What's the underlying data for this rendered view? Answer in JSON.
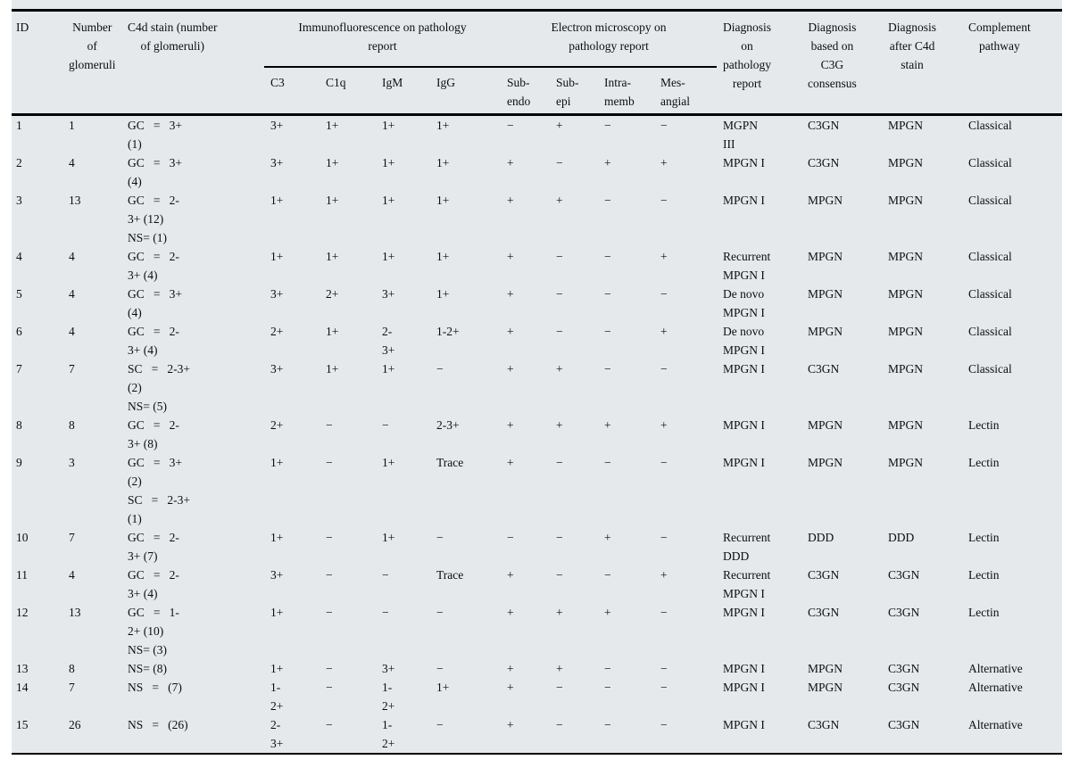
{
  "table": {
    "header": {
      "id": "ID",
      "glomeruli": "Number\nof\nglomeruli",
      "c4d": "C4d stain (number\nof glomeruli)",
      "if_group": "Immunofluorescence on pathology\nreport",
      "em_group": "Electron microscopy on\npathology report",
      "c3": "C3",
      "c1q": "C1q",
      "igm": "IgM",
      "igg": "IgG",
      "subendo": "Sub-\nendo",
      "subepi": "Sub-\nepi",
      "intramemb": "Intra-\nmemb",
      "mesangial": "Mes-\nangial",
      "diag_path": "Diagnosis\non\npathology\nreport",
      "diag_c3g": "Diagnosis\nbased on\nC3G\nconsensus",
      "diag_c4d": "Diagnosis\nafter C4d\nstain",
      "pathway": "Complement\npathway"
    },
    "rows": [
      [
        "1",
        "1",
        "GC   =   3+\n(1)",
        "3+",
        "1+",
        "1+",
        "1+",
        "−",
        "+",
        "−",
        "−",
        "MGPN\nIII",
        "C3GN",
        "MPGN",
        "Classical"
      ],
      [
        "2",
        "4",
        "GC   =   3+\n(4)",
        "3+",
        "1+",
        "1+",
        "1+",
        "+",
        "−",
        "+",
        "+",
        "MPGN I",
        "C3GN",
        "MPGN",
        "Classical"
      ],
      [
        "3",
        "13",
        "GC   =   2-\n3+ (12)\nNS= (1)",
        "1+",
        "1+",
        "1+",
        "1+",
        "+",
        "+",
        "−",
        "−",
        "MPGN I",
        "MPGN",
        "MPGN",
        "Classical"
      ],
      [
        "4",
        "4",
        "GC   =   2-\n3+ (4)",
        "1+",
        "1+",
        "1+",
        "1+",
        "+",
        "−",
        "−",
        "+",
        "Recurrent\nMPGN I",
        "MPGN",
        "MPGN",
        "Classical"
      ],
      [
        "5",
        "4",
        "GC   =   3+\n(4)",
        "3+",
        "2+",
        "3+",
        "1+",
        "+",
        "−",
        "−",
        "−",
        "De novo\nMPGN I",
        "MPGN",
        "MPGN",
        "Classical"
      ],
      [
        "6",
        "4",
        "GC   =   2-\n3+ (4)",
        "2+",
        "1+",
        "2-\n3+",
        "1-2+",
        "+",
        "−",
        "−",
        "+",
        "De novo\nMPGN I",
        "MPGN",
        "MPGN",
        "Classical"
      ],
      [
        "7",
        "7",
        "SC   =   2-3+\n(2)\nNS= (5)",
        "3+",
        "1+",
        "1+",
        "−",
        "+",
        "+",
        "−",
        "−",
        "MPGN I",
        "C3GN",
        "MPGN",
        "Classical"
      ],
      [
        "8",
        "8",
        "GC   =   2-\n3+ (8)",
        "2+",
        "−",
        "−",
        "2-3+",
        "+",
        "+",
        "+",
        "+",
        "MPGN I",
        "MPGN",
        "MPGN",
        "Lectin"
      ],
      [
        "9",
        "3",
        "GC   =   3+\n(2)\nSC   =   2-3+\n(1)",
        "1+",
        "−",
        "1+",
        "Trace",
        "+",
        "−",
        "−",
        "−",
        "MPGN I",
        "MPGN",
        "MPGN",
        "Lectin"
      ],
      [
        "10",
        "7",
        "GC   =   2-\n3+ (7)",
        "1+",
        "−",
        "1+",
        "−",
        "−",
        "−",
        "+",
        "−",
        "Recurrent\nDDD",
        "DDD",
        "DDD",
        "Lectin"
      ],
      [
        "11",
        "4",
        "GC   =   2-\n3+ (4)",
        "3+",
        "−",
        "−",
        "Trace",
        "+",
        "−",
        "−",
        "+",
        "Recurrent\nMPGN I",
        "C3GN",
        "C3GN",
        "Lectin"
      ],
      [
        "12",
        "13",
        "GC   =   1-\n2+ (10)\nNS= (3)",
        "1+",
        "−",
        "−",
        "−",
        "+",
        "+",
        "+",
        "−",
        "MPGN I",
        "C3GN",
        "C3GN",
        "Lectin"
      ],
      [
        "13",
        "8",
        "NS= (8)",
        "1+",
        "−",
        "3+",
        "−",
        "+",
        "+",
        "−",
        "−",
        "MPGN I",
        "MPGN",
        "C3GN",
        "Alternative"
      ],
      [
        "14",
        "7",
        "NS   =   (7)",
        "1-\n2+",
        "−",
        "1-\n2+",
        "1+",
        "+",
        "−",
        "−",
        "−",
        "MPGN I",
        "MPGN",
        "C3GN",
        "Alternative"
      ],
      [
        "15",
        "26",
        "NS   =   (26)",
        "2-\n3+",
        "−",
        "1-\n2+",
        "−",
        "+",
        "−",
        "−",
        "−",
        "MPGN I",
        "C3GN",
        "C3GN",
        "Alternative"
      ]
    ]
  }
}
